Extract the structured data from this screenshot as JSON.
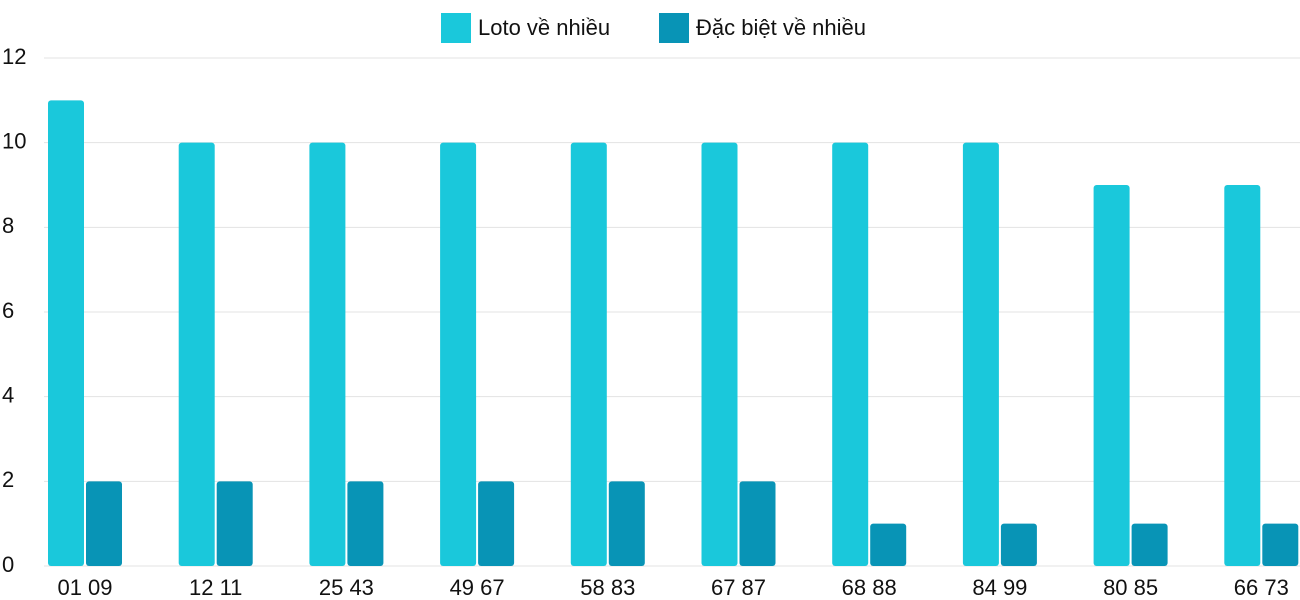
{
  "chart_data": {
    "type": "bar",
    "categories": [
      "01 09",
      "12 11",
      "25 43",
      "49 67",
      "58 83",
      "67 87",
      "68 88",
      "84 99",
      "80 85",
      "66 73"
    ],
    "series": [
      {
        "name": "Loto về nhiều",
        "color": "#1ac8db",
        "values": [
          11,
          10,
          10,
          10,
          10,
          10,
          10,
          10,
          9,
          9
        ]
      },
      {
        "name": "Đặc biệt về nhiều",
        "color": "#0894b6",
        "values": [
          2,
          2,
          2,
          2,
          2,
          2,
          1,
          1,
          1,
          1
        ]
      }
    ],
    "ylim": [
      0,
      12
    ],
    "yticks": [
      0,
      2,
      4,
      6,
      8,
      10,
      12
    ],
    "grid": true,
    "legend": "top"
  }
}
